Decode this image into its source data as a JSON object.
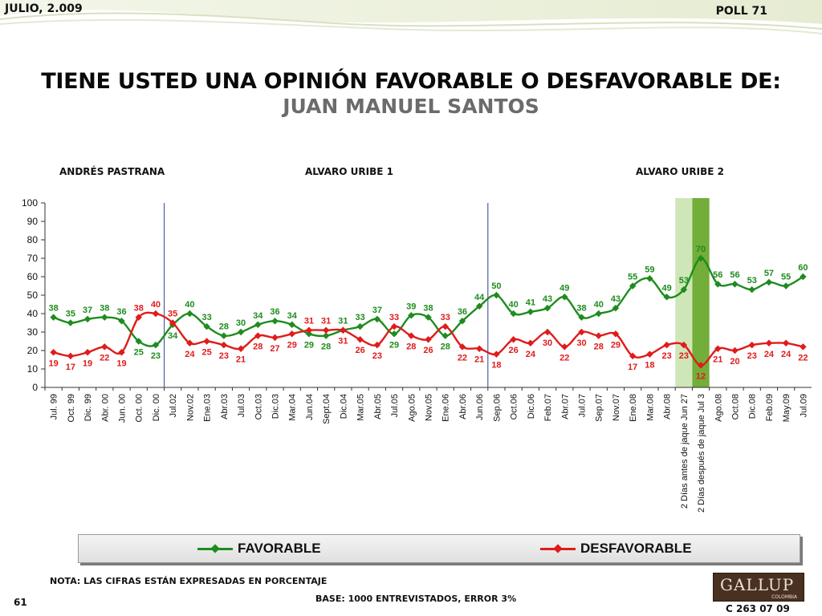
{
  "header": {
    "date": "JULIO, 2.009",
    "poll": "POLL 71"
  },
  "title": {
    "line1": "TIENE USTED UNA OPINIÓN FAVORABLE O DESFAVORABLE DE:",
    "line2": "JUAN MANUEL SANTOS"
  },
  "periods": [
    "ANDRÉS  PASTRANA",
    "ALVARO URIBE 1",
    "ALVARO URIBE 2"
  ],
  "colors": {
    "favorable": "#1e8c1e",
    "desfavorable": "#e01b1b",
    "divider": "#4a5fa0",
    "highlight_light": "#cfe6b8",
    "highlight_dark": "#73ad3a"
  },
  "chart_data": {
    "type": "line",
    "categories": [
      "Jul. 99",
      "Oct. 99",
      "Dic. 99",
      "Abr. 00",
      "Jun. 00",
      "Oct. 00",
      "Dic. 00",
      "Jul.02",
      "Nov.02",
      "Ene.03",
      "Abr.03",
      "Jul.03",
      "Oct.03",
      "Dic.03",
      "Mar.04",
      "Jun.04",
      "Sept.04",
      "Dic.04",
      "Mar.05",
      "Abr.05",
      "Jul.05",
      "Ago.05",
      "Nov.05",
      "Ene.06",
      "Abr.06",
      "Jun.06",
      "Sep.06",
      "Oct.06",
      "Dic.06",
      "Feb.07",
      "Abr.07",
      "Jul.07",
      "Sep.07",
      "Nov.07",
      "Ene.08",
      "Mar.08",
      "Abr.08",
      "2 Días antes de jaque Jun 27",
      "2 Días después de jaque Jul 3",
      "Ago.08",
      "Oct.08",
      "Dic.08",
      "Feb.09",
      "May.09",
      "Jul.09"
    ],
    "series": [
      {
        "name": "FAVORABLE",
        "values": [
          38,
          35,
          37,
          38,
          36,
          25,
          23,
          34,
          40,
          33,
          28,
          30,
          34,
          36,
          34,
          29,
          28,
          31,
          33,
          37,
          29,
          39,
          38,
          28,
          36,
          44,
          50,
          40,
          41,
          43,
          49,
          38,
          40,
          43,
          55,
          59,
          49,
          53,
          70,
          56,
          56,
          53,
          57,
          55,
          60
        ]
      },
      {
        "name": "DESFAVORABLE",
        "values": [
          19,
          17,
          19,
          22,
          19,
          38,
          40,
          35,
          24,
          25,
          23,
          21,
          28,
          27,
          29,
          31,
          31,
          31,
          26,
          23,
          33,
          28,
          26,
          33,
          22,
          21,
          18,
          26,
          24,
          30,
          22,
          30,
          28,
          29,
          17,
          18,
          23,
          23,
          12,
          21,
          20,
          23,
          24,
          24,
          22
        ]
      }
    ],
    "ylim": [
      0,
      100
    ],
    "yticks": [
      0,
      10,
      20,
      30,
      40,
      50,
      60,
      70,
      80,
      90,
      100
    ],
    "grid": false,
    "legend": "bottom"
  },
  "legend": {
    "favorable": "FAVORABLE",
    "desfavorable": "DESFAVORABLE"
  },
  "footer": {
    "note": "NOTA: LAS CIFRAS ESTÁN EXPRESADAS EN PORCENTAJE",
    "base": "BASE: 1000 ENTREVISTADOS, ERROR 3%",
    "page": "61",
    "code": "C 263 07 09",
    "logo": "GALLUP",
    "logo_sub": "COLOMBIA"
  }
}
